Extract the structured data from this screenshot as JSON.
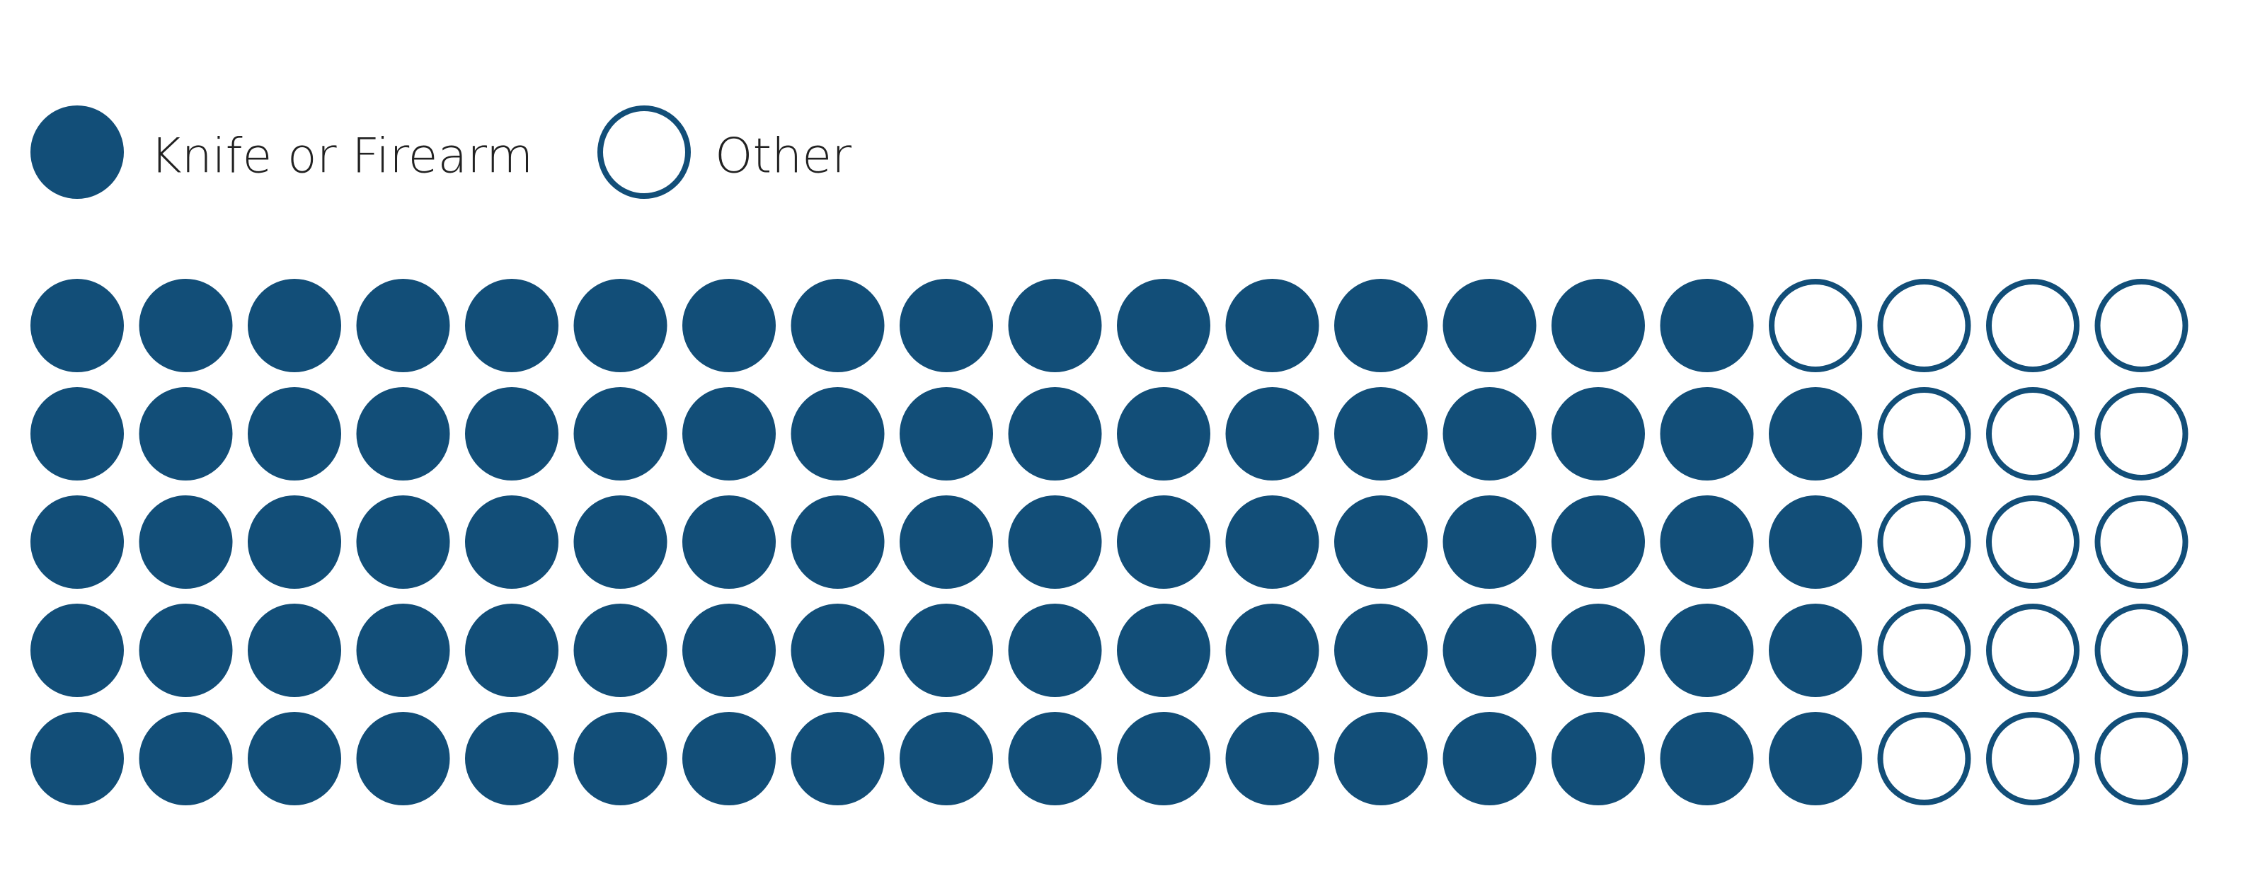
{
  "chart_data": {
    "type": "waffle",
    "rows": 5,
    "columns": 20,
    "total_units": 100,
    "fill_order": "row-major, left to right, top to bottom",
    "series": [
      {
        "name": "Knife or Firearm",
        "value": 84,
        "style": "filled"
      },
      {
        "name": "Other",
        "value": 16,
        "style": "outline"
      }
    ],
    "row_values": [
      {
        "filled": 16,
        "outline": 4
      },
      {
        "filled": 17,
        "outline": 3
      },
      {
        "filled": 17,
        "outline": 3
      },
      {
        "filled": 17,
        "outline": 3
      },
      {
        "filled": 17,
        "outline": 3
      }
    ],
    "legend": {
      "position": "top-left",
      "items": [
        {
          "label": "Knife or Firearm",
          "marker": "filled-circle"
        },
        {
          "label": "Other",
          "marker": "outline-circle"
        }
      ]
    },
    "colors": {
      "primary": "#124e78",
      "outline_fill": "#ffffff"
    }
  }
}
